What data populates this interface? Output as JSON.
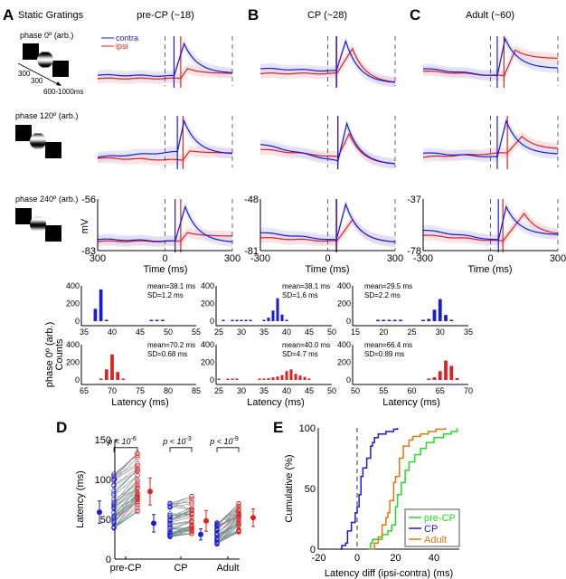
{
  "colors": {
    "contra": "#1a1adc",
    "ipsi": "#e02020",
    "green": "#22dd22",
    "orange": "#e07810",
    "teal": "#20a080",
    "gray": "#909090"
  },
  "panelA": {
    "label": "A",
    "title": "Static Gratings",
    "stim_rows": [
      {
        "label": "phase 0º (arb.)"
      },
      {
        "label": "phase 120º (arb.)"
      },
      {
        "label": "phase 240º (arb.)"
      }
    ],
    "timing": {
      "t1": "300",
      "t2": "300",
      "t3": "600-1000ms"
    }
  },
  "panelB": {
    "label": "B"
  },
  "panelC": {
    "label": "C"
  },
  "legend": {
    "contra": "contra",
    "ipsi": "ipsi"
  },
  "mv_label": "mV",
  "time_label": "Time (ms)",
  "latency_label": "Latency (ms)",
  "hist_ylabel1": "phase 0º (arb.)",
  "hist_ylabel2": "Counts",
  "chart_data": [
    {
      "type": "line",
      "name": "traces",
      "columns": [
        {
          "title": "pre-CP (~18)",
          "ylim": [
            "-56",
            "-83"
          ],
          "xticks": [
            "300",
            "0",
            "300"
          ],
          "rows": [
            {
              "contra": {
                "b0": 0.22,
                "b1": 0.2,
                "onset": 40,
                "peak": 0.85,
                "tpeak": 85,
                "end": 0.25
              },
              "ipsi": {
                "b0": 0.15,
                "b1": 0.15,
                "onset": 70,
                "peak": 0.35,
                "tpeak": 100,
                "end": 0.25
              }
            },
            {
              "contra": {
                "b0": 0.2,
                "b1": 0.3,
                "onset": 55,
                "peak": 0.9,
                "tpeak": 85,
                "end": 0.25
              },
              "ipsi": {
                "b0": 0.18,
                "b1": 0.14,
                "onset": 80,
                "peak": 0.32,
                "tpeak": 110,
                "end": 0.28
              }
            },
            {
              "contra": {
                "b0": 0.22,
                "b1": 0.18,
                "onset": 45,
                "peak": 0.85,
                "tpeak": 90,
                "end": 0.15
              },
              "ipsi": {
                "b0": 0.18,
                "b1": 0.18,
                "onset": 70,
                "peak": 0.35,
                "tpeak": 100,
                "end": 0.28
              }
            }
          ]
        },
        {
          "title": "CP (~28)",
          "ylim": [
            "-48",
            "-81"
          ],
          "xticks": [
            "-300",
            "0",
            "300"
          ],
          "rows": [
            {
              "contra": {
                "b0": 0.35,
                "b1": 0.3,
                "onset": 38,
                "peak": 0.9,
                "tpeak": 80,
                "end": 0.05
              },
              "ipsi": {
                "b0": 0.25,
                "b1": 0.25,
                "onset": 40,
                "peak": 0.75,
                "tpeak": 110,
                "end": 0.05
              }
            },
            {
              "contra": {
                "b0": 0.45,
                "b1": 0.12,
                "onset": 45,
                "peak": 0.85,
                "tpeak": 85,
                "end": 0.05
              },
              "ipsi": {
                "b0": 0.35,
                "b1": 0.2,
                "onset": 45,
                "peak": 0.65,
                "tpeak": 95,
                "end": 0.05
              }
            },
            {
              "contra": {
                "b0": 0.35,
                "b1": 0.2,
                "onset": 38,
                "peak": 0.9,
                "tpeak": 80,
                "end": 0.15
              },
              "ipsi": {
                "b0": 0.25,
                "b1": 0.18,
                "onset": 40,
                "peak": 0.6,
                "tpeak": 110,
                "end": 0.15
              }
            }
          ]
        },
        {
          "title": "Adult (~60)",
          "ylim": [
            "-37",
            "-78"
          ],
          "xticks": [
            "-300",
            "0",
            "300"
          ],
          "rows": [
            {
              "contra": {
                "b0": 0.35,
                "b1": 0.2,
                "onset": 30,
                "peak": 0.95,
                "tpeak": 65,
                "end": 0.35
              },
              "ipsi": {
                "b0": 0.3,
                "b1": 0.2,
                "onset": 60,
                "peak": 0.72,
                "tpeak": 110,
                "end": 0.55
              }
            },
            {
              "contra": {
                "b0": 0.28,
                "b1": 0.2,
                "onset": 30,
                "peak": 0.9,
                "tpeak": 70,
                "end": 0.25
              },
              "ipsi": {
                "b0": 0.2,
                "b1": 0.28,
                "onset": 75,
                "peak": 0.6,
                "tpeak": 140,
                "end": 0.35
              }
            },
            {
              "contra": {
                "b0": 0.4,
                "b1": 0.2,
                "onset": 35,
                "peak": 0.85,
                "tpeak": 70,
                "end": 0.3
              },
              "ipsi": {
                "b0": 0.3,
                "b1": 0.18,
                "onset": 55,
                "peak": 0.72,
                "tpeak": 150,
                "end": 0.3
              }
            }
          ]
        }
      ]
    },
    {
      "type": "bar",
      "name": "latency-histograms",
      "ylim": [
        0,
        400
      ],
      "yticks": [
        "0",
        "200",
        "400"
      ],
      "columns": [
        {
          "xlim": [
            35,
            55
          ],
          "xticks": [
            "35",
            "40",
            "45",
            "50",
            "55"
          ],
          "contra": {
            "mean": "mean=38.1 ms",
            "sd": "SD=1.2 ms",
            "bins": [
              [
                37,
                140
              ],
              [
                38,
                360
              ],
              [
                39,
                8
              ],
              [
                47,
                8
              ],
              [
                48,
                8
              ],
              [
                49,
                8
              ]
            ]
          },
          "ipsi_xlim": [
            65,
            85
          ],
          "ipsi_xticks": [
            "65",
            "70",
            "75",
            "80",
            "85"
          ],
          "ipsi": {
            "mean": "mean=70.2 ms",
            "sd": "SD=0.68 ms",
            "bins": [
              [
                68,
                10
              ],
              [
                69,
                120
              ],
              [
                70,
                290
              ],
              [
                71,
                90
              ],
              [
                72,
                10
              ]
            ]
          }
        },
        {
          "xlim": [
            25,
            50
          ],
          "xticks": [
            "25",
            "30",
            "35",
            "40",
            "45",
            "50"
          ],
          "contra": {
            "mean": "mean=38.1 ms",
            "sd": "SD=1.6 ms",
            "bins": [
              [
                26,
                8
              ],
              [
                28,
                8
              ],
              [
                29,
                8
              ],
              [
                30,
                8
              ],
              [
                31,
                8
              ],
              [
                32,
                8
              ],
              [
                35,
                15
              ],
              [
                36,
                40
              ],
              [
                37,
                120
              ],
              [
                38,
                260
              ],
              [
                39,
                75
              ],
              [
                40,
                10
              ]
            ]
          },
          "ipsi_xlim": [
            25,
            50
          ],
          "ipsi_xticks": [
            "25",
            "30",
            "35",
            "40",
            "45",
            "50"
          ],
          "ipsi": {
            "mean": "mean=40.0 ms",
            "sd": "SD=4.7 ms",
            "bins": [
              [
                25,
                8
              ],
              [
                27,
                8
              ],
              [
                28,
                8
              ],
              [
                29,
                8
              ],
              [
                34,
                10
              ],
              [
                35,
                15
              ],
              [
                36,
                20
              ],
              [
                37,
                30
              ],
              [
                38,
                40
              ],
              [
                39,
                55
              ],
              [
                40,
                100
              ],
              [
                41,
                120
              ],
              [
                42,
                70
              ],
              [
                43,
                50
              ],
              [
                44,
                35
              ],
              [
                45,
                10
              ]
            ]
          }
        },
        {
          "xlim": [
            15,
            35
          ],
          "xticks": [
            "15",
            "20",
            "25",
            "30",
            "35"
          ],
          "contra": {
            "mean": "mean=29.5 ms",
            "sd": "SD=2.2 ms",
            "bins": [
              [
                19,
                8
              ],
              [
                20,
                8
              ],
              [
                21,
                12
              ],
              [
                22,
                8
              ],
              [
                23,
                8
              ],
              [
                27,
                10
              ],
              [
                28,
                25
              ],
              [
                29,
                130
              ],
              [
                30,
                250
              ],
              [
                31,
                70
              ],
              [
                32,
                10
              ]
            ]
          },
          "ipsi_xlim": [
            50,
            70
          ],
          "ipsi_xticks": [
            "50",
            "55",
            "60",
            "65",
            "70"
          ],
          "ipsi": {
            "mean": "mean=66.4 ms",
            "sd": "SD=0.89 ms",
            "bins": [
              [
                63,
                10
              ],
              [
                64,
                30
              ],
              [
                65,
                100
              ],
              [
                66,
                220
              ],
              [
                67,
                160
              ],
              [
                68,
                20
              ]
            ]
          }
        }
      ]
    },
    {
      "type": "scatter",
      "name": "paired-latency",
      "label": "D",
      "ylabel": "Latency (ms)",
      "ylim": [
        0,
        150
      ],
      "yticks": [
        "0",
        "50",
        "100",
        "150"
      ],
      "groups": [
        {
          "name": "pre-CP",
          "p": "p < 10",
          "exp": "-6",
          "contra_mean": 59,
          "contra_sd": 14,
          "ipsi_mean": 85,
          "ipsi_sd": 17,
          "contra_range": [
            39,
            114
          ],
          "ipsi_range": [
            46,
            133
          ]
        },
        {
          "name": "CP",
          "p": "p < 10",
          "exp": "-3",
          "contra_mean": 45,
          "contra_sd": 11,
          "ipsi_mean": 48,
          "ipsi_sd": 13,
          "contra_range": [
            28,
            73
          ],
          "ipsi_range": [
            32,
            87
          ]
        },
        {
          "name": "Adult",
          "p": "p < 10",
          "exp": "-9",
          "contra_mean": 31,
          "contra_sd": 7,
          "ipsi_mean": 52,
          "ipsi_sd": 11,
          "contra_range": [
            18,
            46
          ],
          "ipsi_range": [
            34,
            85
          ]
        }
      ]
    },
    {
      "type": "line",
      "name": "cumulative",
      "label": "E",
      "xlabel": "Latency diff (ipsi-contra) (ms)",
      "ylabel": "Cumulative (%)",
      "xlim": [
        -20,
        52
      ],
      "ylim": [
        0,
        100
      ],
      "xticks": [
        "-20",
        "0",
        "20",
        "40"
      ],
      "yticks": [
        "0",
        "50",
        "100"
      ],
      "legend": "bottom-right",
      "series": [
        {
          "name": "pre-CP",
          "color": "#22dd22",
          "points": [
            [
              6,
              0
            ],
            [
              7,
              5
            ],
            [
              8,
              8
            ],
            [
              12,
              8
            ],
            [
              13,
              12
            ],
            [
              16,
              15
            ],
            [
              18,
              20
            ],
            [
              20,
              35
            ],
            [
              21,
              45
            ],
            [
              23,
              55
            ],
            [
              25,
              65
            ],
            [
              27,
              72
            ],
            [
              30,
              78
            ],
            [
              33,
              83
            ],
            [
              36,
              88
            ],
            [
              40,
              92
            ],
            [
              45,
              95
            ],
            [
              49,
              97
            ],
            [
              52,
              100
            ]
          ]
        },
        {
          "name": "CP",
          "color": "#1a1adc",
          "points": [
            [
              -9,
              0
            ],
            [
              -8,
              3
            ],
            [
              -6,
              5
            ],
            [
              -5,
              15
            ],
            [
              -3,
              22
            ],
            [
              -1,
              30
            ],
            [
              0,
              35
            ],
            [
              1,
              45
            ],
            [
              2,
              60
            ],
            [
              3,
              67
            ],
            [
              5,
              75
            ],
            [
              7,
              85
            ],
            [
              8,
              88
            ],
            [
              9,
              92
            ],
            [
              11,
              95
            ],
            [
              15,
              97
            ],
            [
              19,
              99
            ],
            [
              21,
              100
            ]
          ]
        },
        {
          "name": "Adult",
          "color": "#e07810",
          "points": [
            [
              7,
              0
            ],
            [
              9,
              5
            ],
            [
              11,
              10
            ],
            [
              13,
              20
            ],
            [
              15,
              26
            ],
            [
              16,
              30
            ],
            [
              17,
              40
            ],
            [
              19,
              55
            ],
            [
              20,
              60
            ],
            [
              22,
              75
            ],
            [
              24,
              85
            ],
            [
              27,
              90
            ],
            [
              29,
              93
            ],
            [
              33,
              95
            ],
            [
              37,
              97
            ],
            [
              41,
              99
            ],
            [
              46,
              100
            ]
          ]
        }
      ]
    }
  ]
}
